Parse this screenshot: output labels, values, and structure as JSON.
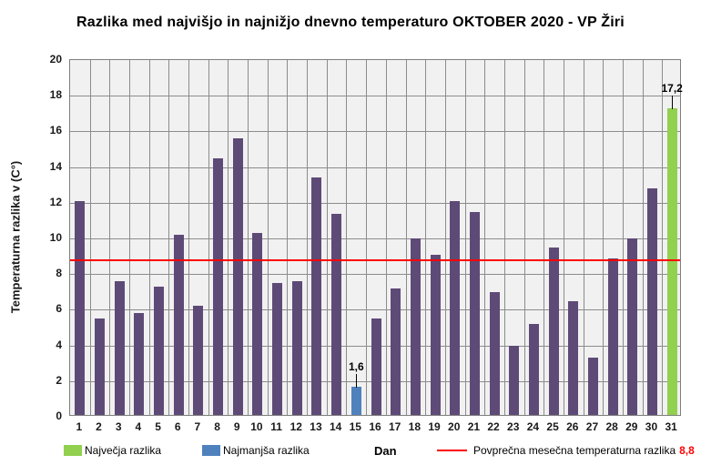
{
  "title": "Razlika med najvišjo in najnižjo dnevno temperaturo OKTOBER 2020 - VP Žiri",
  "chart_data": {
    "type": "bar",
    "title": "Razlika med najvišjo in najnižjo dnevno temperaturo OKTOBER 2020 - VP Žiri",
    "xlabel": "Dan",
    "ylabel": "Temperaturna razlika v (C°)",
    "ylim": [
      0,
      20
    ],
    "ytick_step": 2,
    "grid": true,
    "categories": [
      1,
      2,
      3,
      4,
      5,
      6,
      7,
      8,
      9,
      10,
      11,
      12,
      13,
      14,
      15,
      16,
      17,
      18,
      19,
      20,
      21,
      22,
      23,
      24,
      25,
      26,
      27,
      28,
      29,
      30,
      31
    ],
    "values": [
      12.0,
      5.4,
      7.5,
      5.7,
      7.2,
      10.1,
      6.1,
      14.4,
      15.5,
      10.2,
      7.4,
      7.5,
      13.3,
      11.3,
      1.6,
      5.4,
      7.1,
      9.9,
      9.0,
      12.0,
      11.4,
      6.9,
      3.9,
      5.1,
      9.4,
      6.4,
      3.2,
      8.8,
      9.9,
      12.7,
      17.2
    ],
    "default_bar_color": "#5e4a77",
    "special_bar_colors": {
      "15": "#4f81bd",
      "31": "#92d050"
    },
    "annotations": [
      {
        "category": 15,
        "text": "1,6"
      },
      {
        "category": 31,
        "text": "17,2"
      }
    ],
    "average_line": {
      "value": 8.8,
      "color": "#ff0000"
    },
    "legend": {
      "max_label": "Največja razlika",
      "max_color": "#92d050",
      "min_label": "Najmanjša razlika",
      "min_color": "#4f81bd",
      "avg_label": "Povprečna mesečna temperaturna razlika",
      "avg_value": "8,8",
      "avg_color": "#ff0000"
    },
    "colors": {
      "plot_background": "#f1f1f1",
      "gridline": "#8c8c8c",
      "plot_border": "#7f7f7f"
    }
  }
}
